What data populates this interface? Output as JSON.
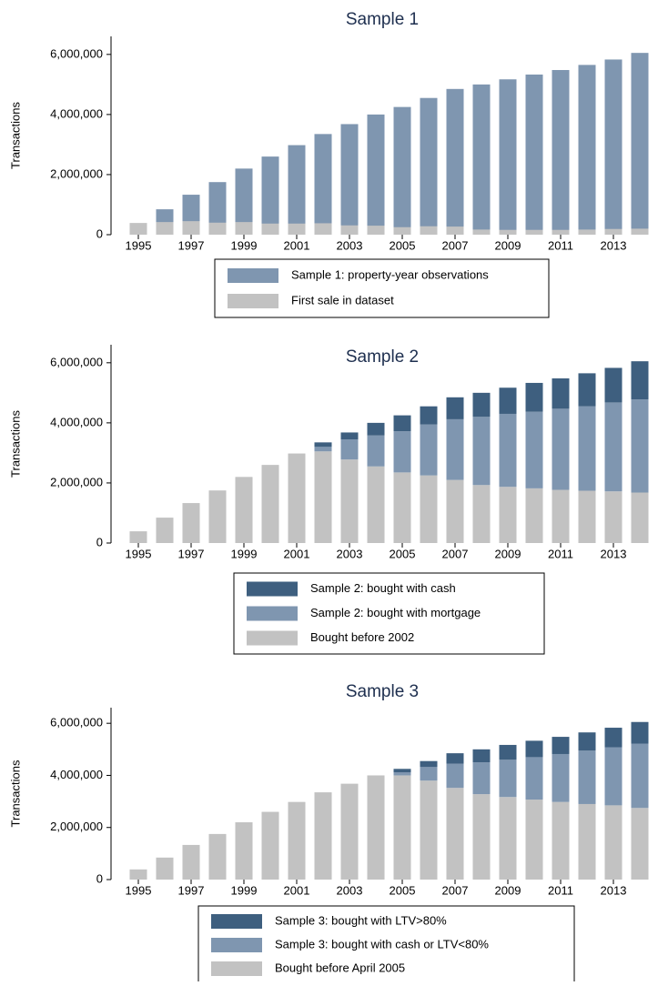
{
  "chart_data": [
    {
      "type": "bar",
      "stacked": false,
      "title": "Sample 1",
      "y_label": "Transactions",
      "grid": false,
      "categories": [
        "1995",
        null,
        "1997",
        null,
        "1999",
        null,
        "2001",
        null,
        "2003",
        null,
        "2005",
        null,
        "2007",
        null,
        "2009",
        null,
        "2011",
        null,
        "2013",
        null
      ],
      "series": [
        {
          "name": "Sample 1: property-year observations",
          "color": "#7f96b0",
          "values": [
            null,
            845000,
            1330000,
            1750000,
            2200000,
            2600000,
            2980000,
            3350000,
            3680000,
            4000000,
            4250000,
            4550000,
            4850000,
            5000000,
            5170000,
            5330000,
            5480000,
            5650000,
            5830000,
            6050000
          ]
        },
        {
          "name": "First sale in dataset",
          "color": "#c2c2c2",
          "values": [
            390000,
            420000,
            450000,
            400000,
            420000,
            370000,
            370000,
            380000,
            310000,
            300000,
            250000,
            280000,
            270000,
            170000,
            160000,
            160000,
            160000,
            170000,
            190000,
            200000
          ]
        }
      ],
      "ylim": [
        0,
        6600000
      ],
      "yticks": [
        0,
        {
          "value": 2000000,
          "label": "2,000,000"
        },
        {
          "value": 4000000,
          "label": "4,000,000"
        },
        {
          "value": 6000000,
          "label": "6,000,000"
        }
      ]
    },
    {
      "type": "bar",
      "stacked": true,
      "title": "Sample 2",
      "y_label": "Transactions",
      "grid": false,
      "categories": [
        "1995",
        null,
        "1997",
        null,
        "1999",
        null,
        "2001",
        null,
        "2003",
        null,
        "2005",
        null,
        "2007",
        null,
        "2009",
        null,
        "2011",
        null,
        "2013",
        null
      ],
      "series": [
        {
          "name": "Sample 2: bought with cash",
          "color": "#3e5f7f",
          "values": [
            null,
            null,
            null,
            null,
            null,
            null,
            null,
            150000,
            230000,
            420000,
            530000,
            600000,
            730000,
            800000,
            870000,
            960000,
            1010000,
            1100000,
            1150000,
            1270000
          ]
        },
        {
          "name": "Sample 2: bought with mortgage",
          "color": "#7f96b0",
          "values": [
            null,
            null,
            null,
            null,
            null,
            null,
            null,
            150000,
            670000,
            1030000,
            1370000,
            1700000,
            2020000,
            2270000,
            2430000,
            2550000,
            2700000,
            2810000,
            2960000,
            3100000
          ]
        },
        {
          "name": "Bought before 2002",
          "color": "#c2c2c2",
          "values": [
            390000,
            845000,
            1330000,
            1750000,
            2200000,
            2600000,
            2980000,
            3050000,
            2780000,
            2550000,
            2350000,
            2250000,
            2100000,
            1930000,
            1870000,
            1820000,
            1770000,
            1740000,
            1720000,
            1680000
          ]
        }
      ],
      "ylim": [
        0,
        6600000
      ],
      "yticks": [
        0,
        {
          "value": 2000000,
          "label": "2,000,000"
        },
        {
          "value": 4000000,
          "label": "4,000,000"
        },
        {
          "value": 6000000,
          "label": "6,000,000"
        }
      ]
    },
    {
      "type": "bar",
      "stacked": true,
      "title": "Sample 3",
      "y_label": "Transactions",
      "grid": false,
      "categories": [
        "1995",
        null,
        "1997",
        null,
        "1999",
        null,
        "2001",
        null,
        "2003",
        null,
        "2005",
        null,
        "2007",
        null,
        "2009",
        null,
        "2011",
        null,
        "2013",
        null
      ],
      "series": [
        {
          "name": "Sample 3: bought with LTV>80%",
          "color": "#3e5f7f",
          "values": [
            null,
            null,
            null,
            null,
            null,
            null,
            null,
            null,
            null,
            null,
            130000,
            230000,
            400000,
            500000,
            570000,
            630000,
            660000,
            700000,
            750000,
            830000
          ]
        },
        {
          "name": "Sample 3: bought with cash or LTV<80%",
          "color": "#7f96b0",
          "values": [
            null,
            null,
            null,
            null,
            null,
            null,
            null,
            null,
            null,
            null,
            120000,
            520000,
            930000,
            1220000,
            1430000,
            1630000,
            1840000,
            2050000,
            2230000,
            2470000
          ]
        },
        {
          "name": "Bought before April 2005",
          "color": "#c2c2c2",
          "values": [
            390000,
            845000,
            1330000,
            1750000,
            2200000,
            2600000,
            2980000,
            3350000,
            3680000,
            4000000,
            4000000,
            3800000,
            3520000,
            3280000,
            3170000,
            3070000,
            2980000,
            2900000,
            2850000,
            2750000
          ]
        }
      ],
      "ylim": [
        0,
        6600000
      ],
      "yticks": [
        0,
        {
          "value": 2000000,
          "label": "2,000,000"
        },
        {
          "value": 4000000,
          "label": "4,000,000"
        },
        {
          "value": 6000000,
          "label": "6,000,000"
        }
      ]
    }
  ]
}
